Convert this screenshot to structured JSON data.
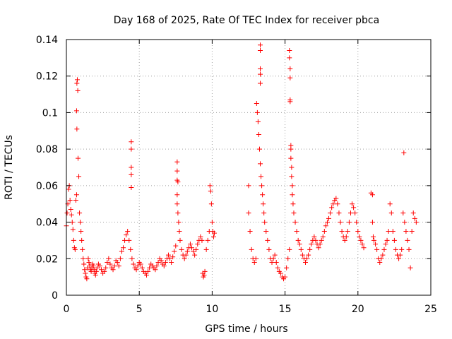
{
  "chart_data": {
    "type": "scatter",
    "title": "Day 168 of 2025, Rate Of TEC Index for receiver pbca",
    "xlabel": "GPS time / hours",
    "ylabel": "ROTI / TECUs",
    "xlim": [
      0,
      25
    ],
    "ylim": [
      0,
      0.14
    ],
    "x_ticks": [
      0,
      5,
      10,
      15,
      20,
      25
    ],
    "y_ticks": [
      0,
      0.02,
      0.04,
      0.06,
      0.08,
      0.1,
      0.12,
      0.14
    ],
    "grid": true,
    "marker": "+",
    "colors": {
      "series": "#ff0000",
      "grid": "#a0a0a0",
      "axes": "#000000"
    },
    "series": [
      {
        "name": "",
        "points": [
          [
            0.0,
            0.038
          ],
          [
            0.05,
            0.045
          ],
          [
            0.1,
            0.05
          ],
          [
            0.15,
            0.058
          ],
          [
            0.2,
            0.06
          ],
          [
            0.25,
            0.052
          ],
          [
            0.3,
            0.047
          ],
          [
            0.35,
            0.044
          ],
          [
            0.4,
            0.04
          ],
          [
            0.45,
            0.036
          ],
          [
            0.5,
            0.03
          ],
          [
            0.55,
            0.026
          ],
          [
            0.6,
            0.025
          ],
          [
            0.65,
            0.052
          ],
          [
            0.7,
            0.055
          ],
          [
            0.72,
            0.116
          ],
          [
            0.75,
            0.118
          ],
          [
            0.78,
            0.112
          ],
          [
            0.7,
            0.101
          ],
          [
            0.72,
            0.091
          ],
          [
            0.8,
            0.075
          ],
          [
            0.85,
            0.065
          ],
          [
            0.9,
            0.045
          ],
          [
            0.95,
            0.04
          ],
          [
            1.0,
            0.035
          ],
          [
            1.05,
            0.03
          ],
          [
            1.1,
            0.025
          ],
          [
            1.15,
            0.02
          ],
          [
            1.2,
            0.017
          ],
          [
            1.25,
            0.014
          ],
          [
            1.3,
            0.012
          ],
          [
            1.35,
            0.01
          ],
          [
            1.4,
            0.009
          ],
          [
            1.45,
            0.015
          ],
          [
            1.5,
            0.02
          ],
          [
            1.55,
            0.018
          ],
          [
            1.6,
            0.016
          ],
          [
            1.65,
            0.014
          ],
          [
            1.7,
            0.013
          ],
          [
            1.75,
            0.015
          ],
          [
            1.8,
            0.017
          ],
          [
            1.85,
            0.016
          ],
          [
            1.9,
            0.014
          ],
          [
            1.95,
            0.012
          ],
          [
            2.0,
            0.011
          ],
          [
            2.05,
            0.013
          ],
          [
            2.1,
            0.015
          ],
          [
            2.2,
            0.017
          ],
          [
            2.3,
            0.016
          ],
          [
            2.4,
            0.014
          ],
          [
            2.5,
            0.012
          ],
          [
            2.6,
            0.013
          ],
          [
            2.7,
            0.015
          ],
          [
            2.8,
            0.018
          ],
          [
            2.9,
            0.02
          ],
          [
            3.0,
            0.017
          ],
          [
            3.1,
            0.015
          ],
          [
            3.2,
            0.014
          ],
          [
            3.3,
            0.016
          ],
          [
            3.4,
            0.019
          ],
          [
            3.5,
            0.018
          ],
          [
            3.6,
            0.016
          ],
          [
            3.7,
            0.02
          ],
          [
            3.8,
            0.024
          ],
          [
            3.9,
            0.026
          ],
          [
            4.0,
            0.03
          ],
          [
            4.1,
            0.033
          ],
          [
            4.2,
            0.035
          ],
          [
            4.3,
            0.03
          ],
          [
            4.4,
            0.025
          ],
          [
            4.45,
            0.084
          ],
          [
            4.45,
            0.08
          ],
          [
            4.45,
            0.07
          ],
          [
            4.45,
            0.066
          ],
          [
            4.45,
            0.059
          ],
          [
            4.5,
            0.02
          ],
          [
            4.6,
            0.017
          ],
          [
            4.7,
            0.015
          ],
          [
            4.8,
            0.014
          ],
          [
            4.9,
            0.016
          ],
          [
            5.0,
            0.018
          ],
          [
            5.1,
            0.017
          ],
          [
            5.2,
            0.015
          ],
          [
            5.3,
            0.013
          ],
          [
            5.4,
            0.012
          ],
          [
            5.5,
            0.011
          ],
          [
            5.6,
            0.013
          ],
          [
            5.7,
            0.015
          ],
          [
            5.8,
            0.017
          ],
          [
            5.9,
            0.016
          ],
          [
            6.0,
            0.015
          ],
          [
            6.1,
            0.014
          ],
          [
            6.2,
            0.016
          ],
          [
            6.3,
            0.018
          ],
          [
            6.4,
            0.02
          ],
          [
            6.5,
            0.019
          ],
          [
            6.6,
            0.017
          ],
          [
            6.7,
            0.016
          ],
          [
            6.8,
            0.018
          ],
          [
            6.9,
            0.02
          ],
          [
            7.0,
            0.022
          ],
          [
            7.1,
            0.02
          ],
          [
            7.2,
            0.018
          ],
          [
            7.3,
            0.021
          ],
          [
            7.4,
            0.024
          ],
          [
            7.5,
            0.027
          ],
          [
            7.6,
            0.073
          ],
          [
            7.6,
            0.068
          ],
          [
            7.6,
            0.063
          ],
          [
            7.65,
            0.062
          ],
          [
            7.6,
            0.055
          ],
          [
            7.6,
            0.05
          ],
          [
            7.65,
            0.045
          ],
          [
            7.7,
            0.04
          ],
          [
            7.75,
            0.035
          ],
          [
            7.8,
            0.03
          ],
          [
            7.9,
            0.025
          ],
          [
            8.0,
            0.022
          ],
          [
            8.1,
            0.02
          ],
          [
            8.2,
            0.022
          ],
          [
            8.3,
            0.024
          ],
          [
            8.4,
            0.026
          ],
          [
            8.5,
            0.028
          ],
          [
            8.6,
            0.026
          ],
          [
            8.7,
            0.024
          ],
          [
            8.8,
            0.022
          ],
          [
            8.9,
            0.025
          ],
          [
            9.0,
            0.028
          ],
          [
            9.1,
            0.03
          ],
          [
            9.2,
            0.032
          ],
          [
            9.3,
            0.03
          ],
          [
            9.35,
            0.012
          ],
          [
            9.4,
            0.01
          ],
          [
            9.45,
            0.011
          ],
          [
            9.5,
            0.013
          ],
          [
            9.6,
            0.025
          ],
          [
            9.7,
            0.03
          ],
          [
            9.8,
            0.035
          ],
          [
            9.85,
            0.06
          ],
          [
            9.9,
            0.057
          ],
          [
            9.95,
            0.05
          ],
          [
            10.0,
            0.04
          ],
          [
            10.05,
            0.035
          ],
          [
            10.1,
            0.032
          ],
          [
            10.15,
            0.034
          ],
          [
            12.5,
            0.06
          ],
          [
            12.5,
            0.045
          ],
          [
            12.6,
            0.035
          ],
          [
            12.7,
            0.025
          ],
          [
            12.8,
            0.02
          ],
          [
            12.9,
            0.018
          ],
          [
            13.0,
            0.02
          ],
          [
            13.05,
            0.105
          ],
          [
            13.1,
            0.1
          ],
          [
            13.15,
            0.095
          ],
          [
            13.2,
            0.088
          ],
          [
            13.25,
            0.08
          ],
          [
            13.3,
            0.072
          ],
          [
            13.35,
            0.065
          ],
          [
            13.3,
            0.137
          ],
          [
            13.3,
            0.134
          ],
          [
            13.3,
            0.124
          ],
          [
            13.3,
            0.121
          ],
          [
            13.3,
            0.116
          ],
          [
            13.4,
            0.06
          ],
          [
            13.45,
            0.055
          ],
          [
            13.5,
            0.05
          ],
          [
            13.55,
            0.045
          ],
          [
            13.6,
            0.04
          ],
          [
            13.7,
            0.035
          ],
          [
            13.8,
            0.03
          ],
          [
            13.9,
            0.025
          ],
          [
            14.0,
            0.02
          ],
          [
            14.1,
            0.018
          ],
          [
            14.2,
            0.02
          ],
          [
            14.3,
            0.022
          ],
          [
            14.4,
            0.018
          ],
          [
            14.5,
            0.015
          ],
          [
            14.6,
            0.013
          ],
          [
            14.7,
            0.012
          ],
          [
            14.8,
            0.01
          ],
          [
            14.9,
            0.009
          ],
          [
            15.0,
            0.01
          ],
          [
            15.1,
            0.015
          ],
          [
            15.2,
            0.02
          ],
          [
            15.3,
            0.025
          ],
          [
            15.3,
            0.134
          ],
          [
            15.3,
            0.13
          ],
          [
            15.35,
            0.124
          ],
          [
            15.35,
            0.119
          ],
          [
            15.35,
            0.107
          ],
          [
            15.35,
            0.106
          ],
          [
            15.4,
            0.082
          ],
          [
            15.4,
            0.08
          ],
          [
            15.4,
            0.075
          ],
          [
            15.45,
            0.07
          ],
          [
            15.45,
            0.065
          ],
          [
            15.5,
            0.06
          ],
          [
            15.5,
            0.055
          ],
          [
            15.55,
            0.05
          ],
          [
            15.6,
            0.045
          ],
          [
            15.7,
            0.04
          ],
          [
            15.8,
            0.035
          ],
          [
            15.9,
            0.03
          ],
          [
            16.0,
            0.028
          ],
          [
            16.1,
            0.025
          ],
          [
            16.2,
            0.022
          ],
          [
            16.3,
            0.02
          ],
          [
            16.4,
            0.018
          ],
          [
            16.5,
            0.02
          ],
          [
            16.6,
            0.022
          ],
          [
            16.7,
            0.025
          ],
          [
            16.8,
            0.028
          ],
          [
            16.9,
            0.03
          ],
          [
            17.0,
            0.032
          ],
          [
            17.1,
            0.03
          ],
          [
            17.2,
            0.028
          ],
          [
            17.3,
            0.026
          ],
          [
            17.4,
            0.028
          ],
          [
            17.5,
            0.03
          ],
          [
            17.6,
            0.032
          ],
          [
            17.7,
            0.035
          ],
          [
            17.8,
            0.038
          ],
          [
            17.9,
            0.04
          ],
          [
            18.0,
            0.042
          ],
          [
            18.1,
            0.045
          ],
          [
            18.2,
            0.048
          ],
          [
            18.3,
            0.05
          ],
          [
            18.4,
            0.052
          ],
          [
            18.5,
            0.053
          ],
          [
            18.6,
            0.05
          ],
          [
            18.7,
            0.045
          ],
          [
            18.8,
            0.04
          ],
          [
            18.9,
            0.035
          ],
          [
            19.0,
            0.032
          ],
          [
            19.1,
            0.03
          ],
          [
            19.2,
            0.032
          ],
          [
            19.3,
            0.035
          ],
          [
            19.4,
            0.04
          ],
          [
            19.5,
            0.045
          ],
          [
            19.6,
            0.05
          ],
          [
            19.7,
            0.048
          ],
          [
            19.8,
            0.045
          ],
          [
            19.9,
            0.04
          ],
          [
            20.0,
            0.035
          ],
          [
            20.1,
            0.032
          ],
          [
            20.2,
            0.03
          ],
          [
            20.3,
            0.028
          ],
          [
            20.4,
            0.026
          ],
          [
            20.9,
            0.056
          ],
          [
            21.0,
            0.055
          ],
          [
            21.0,
            0.04
          ],
          [
            21.05,
            0.032
          ],
          [
            21.1,
            0.03
          ],
          [
            21.2,
            0.028
          ],
          [
            21.3,
            0.025
          ],
          [
            21.4,
            0.02
          ],
          [
            21.5,
            0.018
          ],
          [
            21.6,
            0.02
          ],
          [
            21.7,
            0.022
          ],
          [
            21.8,
            0.025
          ],
          [
            21.9,
            0.028
          ],
          [
            22.0,
            0.03
          ],
          [
            22.1,
            0.035
          ],
          [
            22.2,
            0.05
          ],
          [
            22.3,
            0.045
          ],
          [
            22.4,
            0.035
          ],
          [
            22.5,
            0.03
          ],
          [
            22.6,
            0.025
          ],
          [
            22.7,
            0.022
          ],
          [
            22.8,
            0.02
          ],
          [
            22.9,
            0.022
          ],
          [
            23.0,
            0.025
          ],
          [
            23.1,
            0.045
          ],
          [
            23.15,
            0.078
          ],
          [
            23.2,
            0.04
          ],
          [
            23.3,
            0.035
          ],
          [
            23.4,
            0.03
          ],
          [
            23.5,
            0.025
          ],
          [
            23.6,
            0.015
          ],
          [
            23.7,
            0.035
          ],
          [
            23.8,
            0.045
          ],
          [
            23.9,
            0.042
          ],
          [
            24.0,
            0.04
          ]
        ]
      }
    ]
  }
}
